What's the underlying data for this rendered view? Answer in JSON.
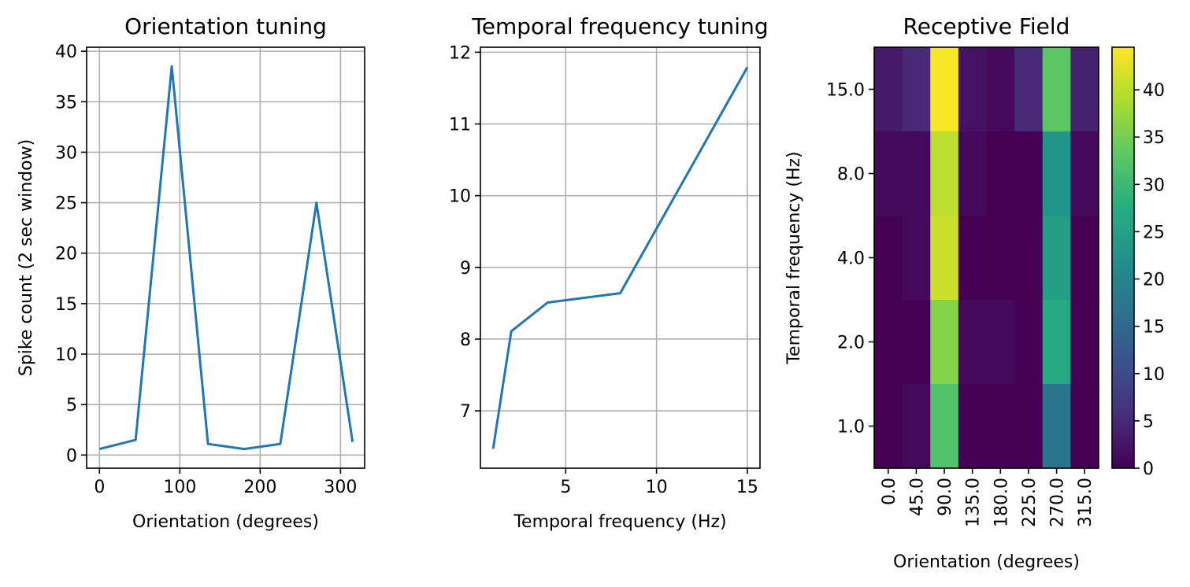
{
  "chart_data": [
    {
      "type": "line",
      "title": "Orientation tuning",
      "xlabel": "Orientation (degrees)",
      "ylabel": "Spike count (2 sec window)",
      "grid": true,
      "x": [
        0,
        45,
        90,
        135,
        180,
        225,
        270,
        315
      ],
      "series": [
        {
          "values": [
            0.6,
            1.5,
            38.5,
            1.1,
            0.6,
            1.1,
            25.0,
            1.3
          ]
        }
      ],
      "xlim": [
        -16,
        330
      ],
      "ylim": [
        -1.3,
        40.4
      ],
      "xticks": [
        0,
        100,
        200,
        300
      ],
      "xticklabels": [
        "0",
        "100",
        "200",
        "300"
      ],
      "yticks": [
        0,
        5,
        10,
        15,
        20,
        25,
        30,
        35,
        40
      ],
      "yticklabels": [
        "0",
        "5",
        "10",
        "15",
        "20",
        "25",
        "30",
        "35",
        "40"
      ],
      "color": "#1f77b4"
    },
    {
      "type": "line",
      "title": "Temporal frequency tuning",
      "xlabel": "Temporal frequency (Hz)",
      "ylabel": "",
      "grid": true,
      "x": [
        1,
        2,
        4,
        8,
        15
      ],
      "series": [
        {
          "values": [
            6.47,
            8.11,
            8.51,
            8.64,
            11.79
          ]
        }
      ],
      "xlim": [
        0.3,
        15.7
      ],
      "ylim": [
        6.2,
        12.07
      ],
      "xticks": [
        5,
        10,
        15
      ],
      "xticklabels": [
        "5",
        "10",
        "15"
      ],
      "yticks": [
        7,
        8,
        9,
        10,
        11,
        12
      ],
      "yticklabels": [
        "7",
        "8",
        "9",
        "10",
        "11",
        "12"
      ],
      "color": "#1f77b4"
    },
    {
      "type": "heatmap",
      "title": "Receptive Field",
      "xlabel": "Orientation (degrees)",
      "ylabel": "Temporal frequency (Hz)",
      "xticklabels": [
        "0.0",
        "45.0",
        "90.0",
        "135.0",
        "180.0",
        "225.0",
        "270.0",
        "315.0"
      ],
      "yticklabels": [
        "15.0",
        "8.0",
        "4.0",
        "2.0",
        "1.0"
      ],
      "values": [
        [
          3,
          5,
          44,
          2,
          1,
          5,
          33,
          4
        ],
        [
          1,
          1,
          40,
          1,
          0,
          0,
          23,
          1
        ],
        [
          0,
          1,
          41,
          0,
          0,
          0,
          25,
          0
        ],
        [
          0,
          0,
          36,
          1,
          1,
          0,
          27,
          0
        ],
        [
          0,
          1,
          32,
          0,
          0,
          0,
          17,
          0
        ]
      ],
      "vmin": 0,
      "vmax": 44.5,
      "colormap": "viridis",
      "colorbar_ticks": [
        0,
        5,
        10,
        15,
        20,
        25,
        30,
        35,
        40
      ],
      "colorbar_ticklabels": [
        "0",
        "5",
        "10",
        "15",
        "20",
        "25",
        "30",
        "35",
        "40"
      ]
    }
  ]
}
